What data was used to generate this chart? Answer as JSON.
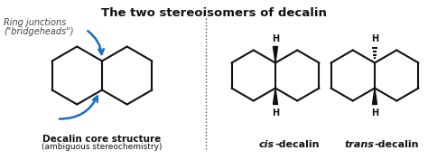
{
  "title": "The two stereoisomers of decalin",
  "title_fontsize": 9.5,
  "title_fontweight": "bold",
  "bg_color": "#ffffff",
  "line_color": "#111111",
  "blue_color": "#1a6cc8",
  "divider_color": "#444444",
  "label1": "Decalin core structure",
  "label1b": "(ambiguous stereochemistry)",
  "annotation_line1": "Ring junctions",
  "annotation_line2": "(\"bridgeheads\")",
  "fig_w": 4.74,
  "fig_h": 1.77,
  "dpi": 100
}
